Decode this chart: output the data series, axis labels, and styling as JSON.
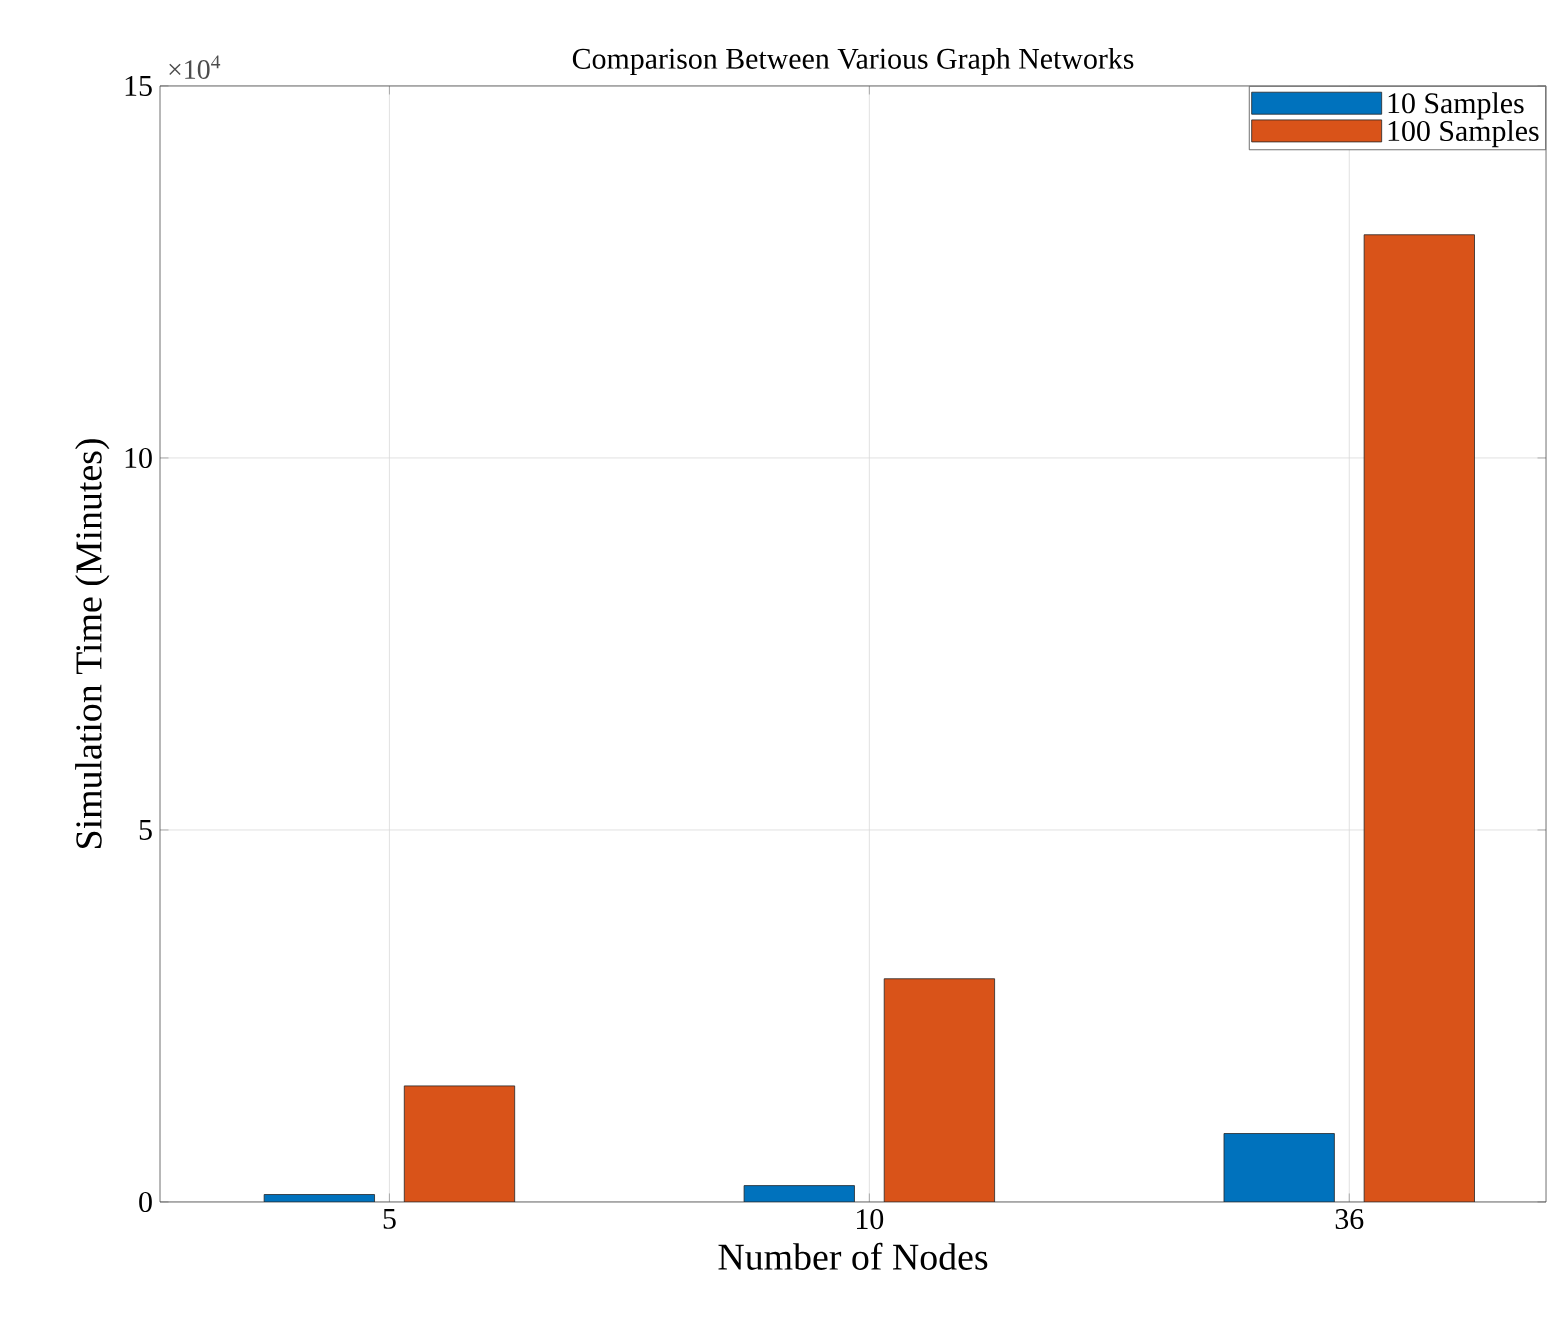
{
  "chart_data": {
    "type": "bar",
    "title": "Comparison Between Various Graph Networks",
    "xlabel": "Number of Nodes",
    "ylabel": "Simulation Time (Minutes)",
    "annotations": [
      "×10$^{4}$"
    ],
    "categories": [
      "5",
      "10",
      "36"
    ],
    "series": [
      {
        "name": "10 Samples",
        "color": "#0072bd",
        "values": [
          0.1,
          0.22,
          0.92
        ]
      },
      {
        "name": "100 Samples",
        "color": "#d95319",
        "values": [
          1.56,
          3.0,
          13.0
        ]
      }
    ],
    "ylim": [
      0,
      15
    ],
    "yticks": [
      0,
      5,
      10,
      15
    ],
    "grid": true,
    "legend": "top right"
  }
}
